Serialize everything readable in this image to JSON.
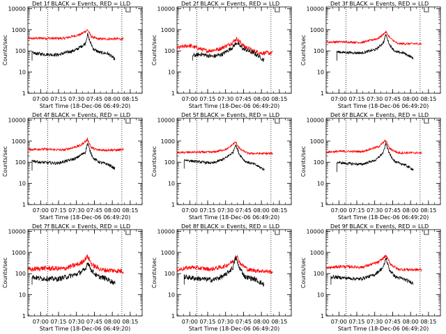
{
  "chart_data": [
    {
      "type": "line",
      "title": "Det 1f BLACK = Events, RED = LLD",
      "xlabel": "Start Time (18-Dec-06 06:49:20)",
      "ylabel": "Counts/sec",
      "xticks": [
        "07:00",
        "07:15",
        "07:30",
        "07:45",
        "08:00",
        "08:15"
      ],
      "yticks": [
        "1",
        "10",
        "100",
        "1000",
        "10000"
      ],
      "xlim": [
        "06:49:20",
        "08:25"
      ],
      "ylim": [
        1,
        12000
      ],
      "yscale": "log",
      "grid": false,
      "markers_x": [
        "07:06",
        "08:08"
      ],
      "series": [
        {
          "color": "#ff0000",
          "keys": [
            [
              0,
              380
            ],
            [
              10,
              400
            ],
            [
              30,
              390
            ],
            [
              44,
              600
            ],
            [
              50,
              1000
            ],
            [
              53,
              480
            ],
            [
              58,
              370
            ],
            [
              80,
              370
            ]
          ],
          "noise": 0.06
        },
        {
          "color": "#000000",
          "start": 3.5,
          "end": 73,
          "start_value": 35,
          "keys": [
            [
              4,
              80
            ],
            [
              10,
              72
            ],
            [
              25,
              65
            ],
            [
              40,
              110
            ],
            [
              48,
              220
            ],
            [
              50,
              600
            ],
            [
              52,
              280
            ],
            [
              55,
              120
            ],
            [
              60,
              85
            ],
            [
              67,
              75
            ],
            [
              73,
              40
            ]
          ],
          "noise": 0.08
        }
      ]
    },
    {
      "type": "line",
      "title": "Det 2f BLACK = Events, RED = LLD",
      "xlabel": "Start Time (18-Dec-06 06:49:20)",
      "ylabel": "Counts/sec",
      "xticks": [
        "07:00",
        "07:15",
        "07:30",
        "07:45",
        "08:00",
        "08:15"
      ],
      "yticks": [
        "1",
        "10",
        "100",
        "1000",
        "10000"
      ],
      "xlim": [
        "06:49:20",
        "08:25"
      ],
      "ylim": [
        1,
        12000
      ],
      "yscale": "log",
      "grid": false,
      "markers_x": [
        "07:06",
        "08:08"
      ],
      "series": [
        {
          "color": "#ff0000",
          "keys": [
            [
              0,
              140
            ],
            [
              10,
              180
            ],
            [
              25,
              100
            ],
            [
              35,
              120
            ],
            [
              45,
              220
            ],
            [
              50,
              380
            ],
            [
              56,
              170
            ],
            [
              64,
              100
            ],
            [
              70,
              80
            ],
            [
              80,
              80
            ]
          ],
          "noise": 0.1
        },
        {
          "color": "#000000",
          "start": 13,
          "end": 73,
          "start_value": 35,
          "keys": [
            [
              13,
              60
            ],
            [
              20,
              70
            ],
            [
              30,
              55
            ],
            [
              38,
              70
            ],
            [
              46,
              140
            ],
            [
              50,
              250
            ],
            [
              55,
              130
            ],
            [
              62,
              90
            ],
            [
              68,
              60
            ],
            [
              73,
              35
            ]
          ],
          "noise": 0.1
        }
      ]
    },
    {
      "type": "line",
      "title": "Det 3f BLACK = Events, RED = LLD",
      "xlabel": "Start Time (18-Dec-06 06:49:20)",
      "ylabel": "Counts/sec",
      "xticks": [
        "07:00",
        "07:15",
        "07:30",
        "07:45",
        "08:00",
        "08:15"
      ],
      "yticks": [
        "1",
        "10",
        "100",
        "1000",
        "10000"
      ],
      "xlim": [
        "06:49:20",
        "08:25"
      ],
      "ylim": [
        1,
        12000
      ],
      "yscale": "log",
      "grid": false,
      "markers_x": [
        "07:06",
        "08:08"
      ],
      "series": [
        {
          "color": "#ff0000",
          "keys": [
            [
              0,
              260
            ],
            [
              12,
              270
            ],
            [
              30,
              250
            ],
            [
              44,
              400
            ],
            [
              50,
              800
            ],
            [
              54,
              380
            ],
            [
              60,
              220
            ],
            [
              80,
              220
            ]
          ],
          "noise": 0.05
        },
        {
          "color": "#000000",
          "start": 9,
          "end": 73,
          "start_value": 35,
          "keys": [
            [
              9,
              90
            ],
            [
              15,
              85
            ],
            [
              30,
              80
            ],
            [
              42,
              120
            ],
            [
              48,
              250
            ],
            [
              50,
              600
            ],
            [
              53,
              200
            ],
            [
              58,
              90
            ],
            [
              65,
              80
            ],
            [
              73,
              45
            ]
          ],
          "noise": 0.06
        }
      ]
    },
    {
      "type": "line",
      "title": "Det 4f BLACK = Events, RED = LLD",
      "xlabel": "Start Time (18-Dec-06 06:49:20)",
      "ylabel": "Counts/sec",
      "xticks": [
        "07:00",
        "07:15",
        "07:30",
        "07:45",
        "08:00",
        "08:15"
      ],
      "yticks": [
        "1",
        "10",
        "100",
        "1000",
        "10000"
      ],
      "xlim": [
        "06:49:20",
        "08:25"
      ],
      "ylim": [
        1,
        12000
      ],
      "yscale": "log",
      "grid": false,
      "markers_x": [
        "07:06",
        "08:08"
      ],
      "series": [
        {
          "color": "#ff0000",
          "keys": [
            [
              0,
              400
            ],
            [
              10,
              420
            ],
            [
              30,
              380
            ],
            [
              44,
              620
            ],
            [
              50,
              1200
            ],
            [
              53,
              500
            ],
            [
              58,
              380
            ],
            [
              80,
              380
            ]
          ],
          "noise": 0.06
        },
        {
          "color": "#000000",
          "start": 3.5,
          "end": 73,
          "start_value": 40,
          "keys": [
            [
              4,
              120
            ],
            [
              10,
              100
            ],
            [
              25,
              90
            ],
            [
              40,
              150
            ],
            [
              48,
              300
            ],
            [
              50,
              800
            ],
            [
              52,
              350
            ],
            [
              55,
              150
            ],
            [
              60,
              100
            ],
            [
              67,
              80
            ],
            [
              73,
              50
            ]
          ],
          "noise": 0.07
        }
      ]
    },
    {
      "type": "line",
      "title": "Det 5f BLACK = Events, RED = LLD",
      "xlabel": "Start Time (18-Dec-06 06:49:20)",
      "ylabel": "Counts/sec",
      "xticks": [
        "07:00",
        "07:15",
        "07:30",
        "07:45",
        "08:00",
        "08:15"
      ],
      "yticks": [
        "1",
        "10",
        "100",
        "1000",
        "10000"
      ],
      "xlim": [
        "06:49:20",
        "08:25"
      ],
      "ylim": [
        1,
        12000
      ],
      "yscale": "log",
      "grid": false,
      "markers_x": [
        "07:06",
        "08:08"
      ],
      "series": [
        {
          "color": "#ff0000",
          "keys": [
            [
              0,
              280
            ],
            [
              12,
              300
            ],
            [
              30,
              300
            ],
            [
              42,
              420
            ],
            [
              49,
              900
            ],
            [
              53,
              400
            ],
            [
              60,
              260
            ],
            [
              80,
              260
            ]
          ],
          "noise": 0.05
        },
        {
          "color": "#000000",
          "start": 6,
          "end": 73,
          "start_value": 50,
          "keys": [
            [
              6,
              130
            ],
            [
              15,
              110
            ],
            [
              30,
              90
            ],
            [
              40,
              150
            ],
            [
              47,
              300
            ],
            [
              49,
              700
            ],
            [
              52,
              250
            ],
            [
              57,
              110
            ],
            [
              65,
              80
            ],
            [
              73,
              45
            ]
          ],
          "noise": 0.06
        }
      ]
    },
    {
      "type": "line",
      "title": "Det 6f BLACK = Events, RED = LLD",
      "xlabel": "Start Time (18-Dec-06 06:49:20)",
      "ylabel": "Counts/sec",
      "xticks": [
        "07:00",
        "07:15",
        "07:30",
        "07:45",
        "08:00",
        "08:15"
      ],
      "yticks": [
        "1",
        "10",
        "100",
        "1000",
        "10000"
      ],
      "xlim": [
        "06:49:20",
        "08:25"
      ],
      "ylim": [
        1,
        12000
      ],
      "yscale": "log",
      "grid": false,
      "markers_x": [
        "07:06",
        "08:08"
      ],
      "series": [
        {
          "color": "#ff0000",
          "keys": [
            [
              0,
              300
            ],
            [
              12,
              330
            ],
            [
              30,
              320
            ],
            [
              44,
              550
            ],
            [
              50,
              1100
            ],
            [
              53,
              450
            ],
            [
              60,
              280
            ],
            [
              80,
              280
            ]
          ],
          "noise": 0.05
        },
        {
          "color": "#000000",
          "start": 9,
          "end": 73,
          "start_value": 35,
          "keys": [
            [
              9,
              100
            ],
            [
              15,
              90
            ],
            [
              30,
              80
            ],
            [
              42,
              130
            ],
            [
              48,
              300
            ],
            [
              50,
              800
            ],
            [
              53,
              250
            ],
            [
              58,
              100
            ],
            [
              65,
              80
            ],
            [
              73,
              45
            ]
          ],
          "noise": 0.06
        }
      ]
    },
    {
      "type": "line",
      "title": "Det 7f BLACK = Events, RED = LLD",
      "xlabel": "Start Time (18-Dec-06 06:49:20)",
      "ylabel": "Counts/sec",
      "xticks": [
        "07:00",
        "07:15",
        "07:30",
        "07:45",
        "08:00",
        "08:15"
      ],
      "yticks": [
        "1",
        "10",
        "100",
        "1000",
        "10000"
      ],
      "xlim": [
        "06:49:20",
        "08:25"
      ],
      "ylim": [
        1,
        12000
      ],
      "yscale": "log",
      "grid": false,
      "markers_x": [
        "07:06",
        "08:08"
      ],
      "series": [
        {
          "color": "#ff0000",
          "keys": [
            [
              0,
              150
            ],
            [
              12,
              180
            ],
            [
              30,
              170
            ],
            [
              44,
              300
            ],
            [
              50,
              650
            ],
            [
              54,
              250
            ],
            [
              62,
              150
            ],
            [
              80,
              130
            ]
          ],
          "noise": 0.12
        },
        {
          "color": "#000000",
          "start": 3.5,
          "end": 73,
          "start_value": 30,
          "keys": [
            [
              4,
              70
            ],
            [
              10,
              60
            ],
            [
              25,
              55
            ],
            [
              40,
              90
            ],
            [
              48,
              150
            ],
            [
              50,
              350
            ],
            [
              53,
              150
            ],
            [
              58,
              75
            ],
            [
              65,
              60
            ],
            [
              73,
              35
            ]
          ],
          "noise": 0.12
        }
      ]
    },
    {
      "type": "line",
      "title": "Det 8f BLACK = Events, RED = LLD",
      "xlabel": "Start Time (18-Dec-06 06:49:20)",
      "ylabel": "Counts/sec",
      "xticks": [
        "07:00",
        "07:15",
        "07:30",
        "07:45",
        "08:00",
        "08:15"
      ],
      "yticks": [
        "1",
        "10",
        "100",
        "1000",
        "10000"
      ],
      "xlim": [
        "06:49:20",
        "08:25"
      ],
      "ylim": [
        1,
        12000
      ],
      "yscale": "log",
      "grid": false,
      "markers_x": [
        "07:06",
        "08:08"
      ],
      "series": [
        {
          "color": "#ff0000",
          "keys": [
            [
              0,
              150
            ],
            [
              12,
              200
            ],
            [
              28,
              160
            ],
            [
              40,
              220
            ],
            [
              48,
              420
            ],
            [
              50,
              700
            ],
            [
              53,
              300
            ],
            [
              60,
              150
            ],
            [
              80,
              120
            ]
          ],
          "noise": 0.1
        },
        {
          "color": "#000000",
          "start": 6,
          "end": 73,
          "start_value": 30,
          "keys": [
            [
              6,
              70
            ],
            [
              15,
              60
            ],
            [
              30,
              50
            ],
            [
              40,
              80
            ],
            [
              47,
              200
            ],
            [
              49,
              600
            ],
            [
              52,
              200
            ],
            [
              57,
              70
            ],
            [
              65,
              55
            ],
            [
              73,
              30
            ]
          ],
          "noise": 0.12
        }
      ]
    },
    {
      "type": "line",
      "title": "Det 9f BLACK = Events, RED = LLD",
      "xlabel": "Start Time (18-Dec-06 06:49:20)",
      "ylabel": "Counts/sec",
      "xticks": [
        "07:00",
        "07:15",
        "07:30",
        "07:45",
        "08:00",
        "08:15"
      ],
      "yticks": [
        "1",
        "10",
        "100",
        "1000",
        "10000"
      ],
      "xlim": [
        "06:49:20",
        "08:25"
      ],
      "ylim": [
        1,
        12000
      ],
      "yscale": "log",
      "grid": false,
      "markers_x": [
        "07:06",
        "08:08"
      ],
      "series": [
        {
          "color": "#ff0000",
          "keys": [
            [
              0,
              180
            ],
            [
              12,
              220
            ],
            [
              30,
              200
            ],
            [
              44,
              350
            ],
            [
              50,
              700
            ],
            [
              54,
              280
            ],
            [
              60,
              160
            ],
            [
              80,
              150
            ]
          ],
          "noise": 0.07
        },
        {
          "color": "#000000",
          "start": 4,
          "end": 73,
          "start_value": 30,
          "keys": [
            [
              4,
              70
            ],
            [
              12,
              65
            ],
            [
              28,
              55
            ],
            [
              40,
              85
            ],
            [
              48,
              200
            ],
            [
              50,
              550
            ],
            [
              53,
              150
            ],
            [
              58,
              70
            ],
            [
              65,
              55
            ],
            [
              73,
              35
            ]
          ],
          "noise": 0.08
        }
      ]
    }
  ]
}
